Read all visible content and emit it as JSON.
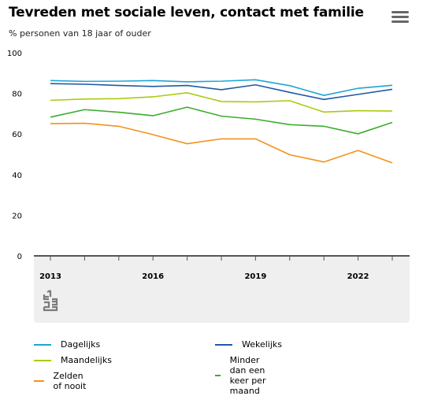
{
  "header": {
    "title": "Tevreden met sociale leven, contact met familie",
    "subtitle": "% personen van 18 jaar of ouder",
    "menu_icon": "hamburger-menu-icon"
  },
  "logo_icon": "cbs-logo-icon",
  "chart_data": {
    "type": "line",
    "title": "Tevreden met sociale leven, contact met familie",
    "subtitle": "% personen van 18 jaar of ouder",
    "x": [
      2013,
      2014,
      2015,
      2016,
      2017,
      2018,
      2019,
      2020,
      2021,
      2022,
      2023
    ],
    "x_ticks": [
      "2013",
      "2016",
      "2019",
      "2022"
    ],
    "y_ticks": [
      "0",
      "20",
      "40",
      "60",
      "80",
      "100"
    ],
    "ylim": [
      0,
      100
    ],
    "grid": false,
    "legend_position": "bottom",
    "series": [
      {
        "name": "Dagelijks",
        "color": "#1ea5d6",
        "values": [
          86.3,
          85.9,
          86.0,
          86.3,
          85.7,
          86.0,
          86.7,
          83.8,
          79.0,
          82.5,
          84.0
        ]
      },
      {
        "name": "Wekelijks",
        "color": "#1f5aa6",
        "values": [
          84.8,
          84.5,
          83.9,
          83.4,
          83.9,
          81.8,
          84.2,
          80.5,
          77.0,
          79.5,
          82.0
        ]
      },
      {
        "name": "Maandelijks",
        "color": "#a8cc10",
        "values": [
          76.6,
          77.2,
          77.4,
          78.3,
          80.3,
          76.0,
          75.8,
          76.4,
          70.8,
          71.5,
          71.3
        ]
      },
      {
        "name": "Minder dan een keer per maand",
        "color": "#3bad2d",
        "values": [
          68.3,
          72.0,
          70.7,
          69.0,
          73.2,
          68.8,
          67.3,
          64.6,
          63.8,
          60.1,
          65.7
        ]
      },
      {
        "name": "Zelden of nooit",
        "color": "#f39318",
        "values": [
          65.1,
          65.3,
          63.8,
          59.7,
          55.2,
          57.6,
          57.6,
          49.8,
          46.2,
          51.9,
          45.8
        ]
      }
    ]
  }
}
